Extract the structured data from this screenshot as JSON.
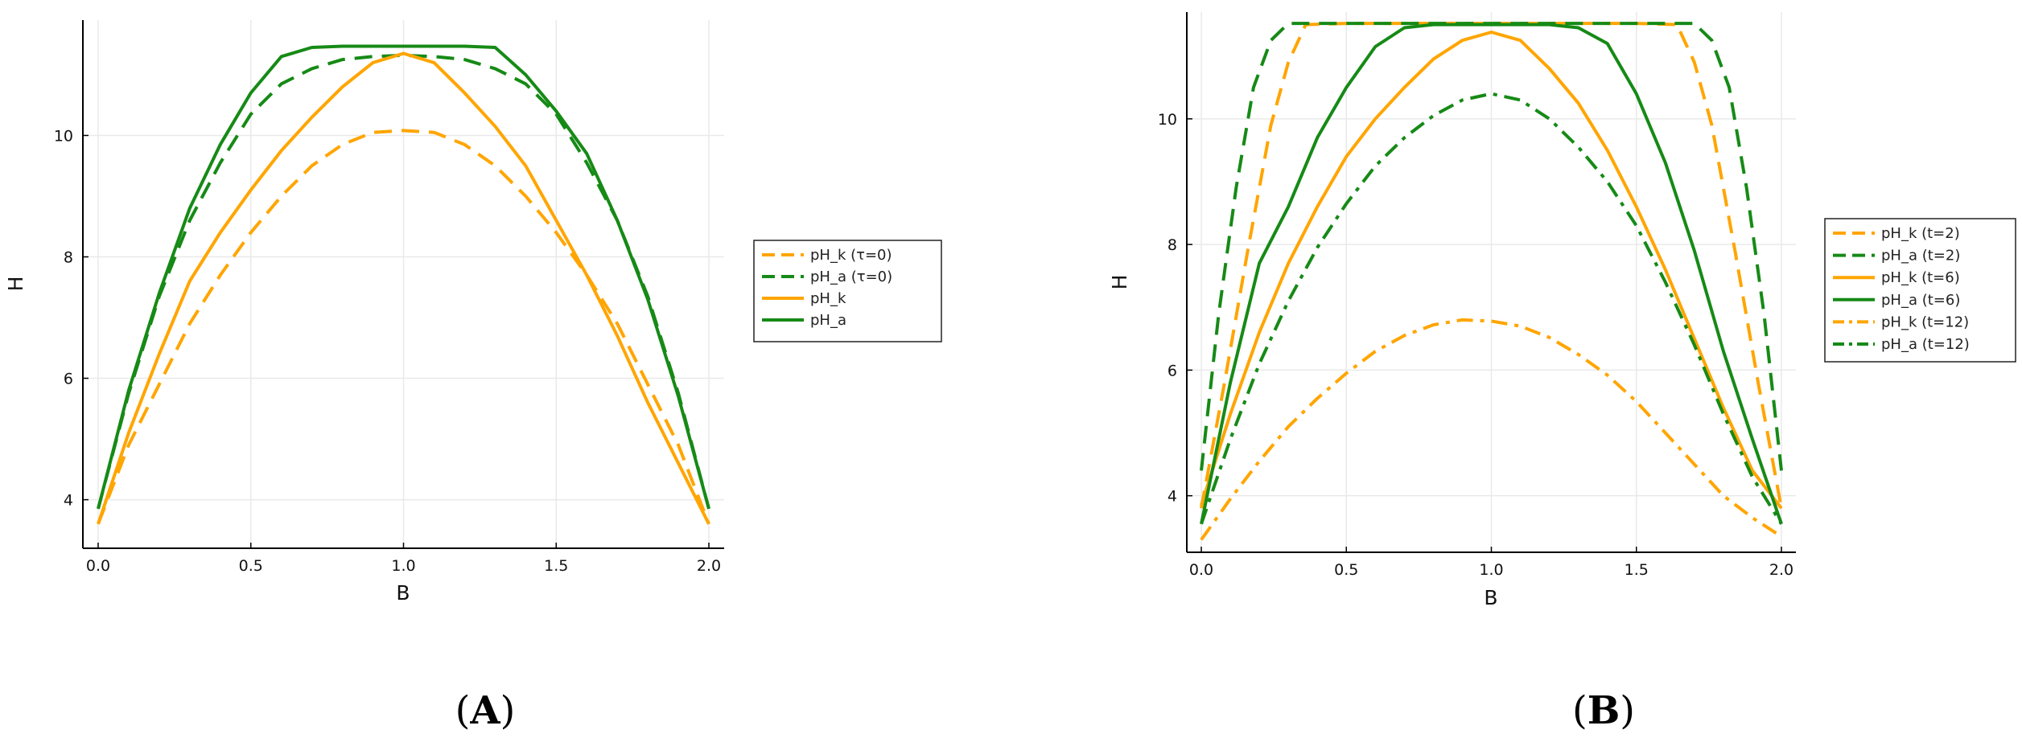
{
  "colors": {
    "orange": "#FFA500",
    "green": "#168A16"
  },
  "chart_data": [
    {
      "type": "line",
      "panel_label": {
        "open": "(",
        "letter": "A",
        "close": ")"
      },
      "xlabel": "B",
      "ylabel": "H",
      "xlim": [
        -0.05,
        2.05
      ],
      "ylim": [
        3.2,
        11.9
      ],
      "xticks": [
        0.0,
        0.5,
        1.0,
        1.5,
        2.0
      ],
      "xtick_labels": [
        "0.0",
        "0.5",
        "1.0",
        "1.5",
        "2.0"
      ],
      "yticks": [
        4,
        6,
        8,
        10
      ],
      "ytick_labels": [
        "4",
        "6",
        "8",
        "10"
      ],
      "grid": true,
      "legend_position": "outside-right",
      "series": [
        {
          "name": "pH_k (τ=0)",
          "color": "orange",
          "style": "dash",
          "x": [
            0,
            0.1,
            0.2,
            0.3,
            0.4,
            0.5,
            0.6,
            0.7,
            0.8,
            0.9,
            1.0,
            1.1,
            1.2,
            1.3,
            1.4,
            1.5,
            1.6,
            1.7,
            1.8,
            1.9,
            2.0
          ],
          "y": [
            3.6,
            4.9,
            5.9,
            6.9,
            7.7,
            8.4,
            9.0,
            9.5,
            9.85,
            10.05,
            10.08,
            10.05,
            9.85,
            9.5,
            9.0,
            8.4,
            7.7,
            6.9,
            5.9,
            4.9,
            3.6
          ]
        },
        {
          "name": "pH_a (τ=0)",
          "color": "green",
          "style": "dash",
          "x": [
            0,
            0.1,
            0.2,
            0.3,
            0.4,
            0.5,
            0.6,
            0.7,
            0.8,
            0.9,
            1.0,
            1.1,
            1.2,
            1.3,
            1.4,
            1.5,
            1.6,
            1.7,
            1.8,
            1.9,
            2.0
          ],
          "y": [
            3.85,
            5.75,
            7.35,
            8.6,
            9.55,
            10.35,
            10.85,
            11.1,
            11.25,
            11.3,
            11.32,
            11.3,
            11.25,
            11.1,
            10.85,
            10.35,
            9.55,
            8.6,
            7.35,
            5.75,
            3.85
          ]
        },
        {
          "name": "pH_k",
          "color": "orange",
          "style": "solid",
          "x": [
            0,
            0.1,
            0.2,
            0.3,
            0.4,
            0.5,
            0.6,
            0.7,
            0.8,
            0.9,
            1.0,
            1.1,
            1.2,
            1.3,
            1.4,
            1.5,
            1.6,
            1.7,
            1.8,
            1.9,
            2.0
          ],
          "y": [
            3.6,
            5.1,
            6.4,
            7.6,
            8.4,
            9.1,
            9.75,
            10.3,
            10.8,
            11.2,
            11.35,
            11.2,
            10.7,
            10.15,
            9.5,
            8.6,
            7.7,
            6.7,
            5.6,
            4.6,
            3.6
          ]
        },
        {
          "name": "pH_a",
          "color": "green",
          "style": "solid",
          "x": [
            0,
            0.1,
            0.2,
            0.3,
            0.4,
            0.5,
            0.6,
            0.7,
            0.8,
            0.9,
            1.0,
            1.1,
            1.2,
            1.3,
            1.4,
            1.5,
            1.6,
            1.7,
            1.8,
            1.9,
            2.0
          ],
          "y": [
            3.85,
            5.8,
            7.4,
            8.8,
            9.85,
            10.7,
            11.3,
            11.45,
            11.47,
            11.47,
            11.47,
            11.47,
            11.47,
            11.45,
            11.0,
            10.4,
            9.7,
            8.6,
            7.3,
            5.7,
            3.85
          ]
        }
      ]
    },
    {
      "type": "line",
      "panel_label": {
        "open": "(",
        "letter": "B",
        "close": ")"
      },
      "xlabel": "B",
      "ylabel": "H",
      "xlim": [
        -0.05,
        2.05
      ],
      "ylim": [
        3.1,
        11.7
      ],
      "xticks": [
        0.0,
        0.5,
        1.0,
        1.5,
        2.0
      ],
      "xtick_labels": [
        "0.0",
        "0.5",
        "1.0",
        "1.5",
        "2.0"
      ],
      "yticks": [
        4,
        6,
        8,
        10
      ],
      "ytick_labels": [
        "4",
        "6",
        "8",
        "10"
      ],
      "grid": true,
      "legend_position": "outside-right",
      "series": [
        {
          "name": "pH_k (t=2)",
          "color": "orange",
          "style": "dash",
          "x": [
            0,
            0.08,
            0.16,
            0.24,
            0.3,
            0.36,
            0.5,
            0.8,
            1.0,
            1.2,
            1.5,
            1.64,
            1.7,
            1.76,
            1.84,
            1.92,
            2.0
          ],
          "y": [
            3.8,
            5.8,
            7.9,
            9.9,
            10.9,
            11.5,
            11.52,
            11.52,
            11.52,
            11.52,
            11.52,
            11.5,
            10.9,
            9.9,
            7.9,
            5.8,
            3.8
          ]
        },
        {
          "name": "pH_a (t=2)",
          "color": "green",
          "style": "dash",
          "x": [
            0,
            0.06,
            0.12,
            0.18,
            0.24,
            0.3,
            0.5,
            0.8,
            1.0,
            1.2,
            1.5,
            1.7,
            1.76,
            1.82,
            1.88,
            1.94,
            2.0
          ],
          "y": [
            4.4,
            6.9,
            8.9,
            10.5,
            11.25,
            11.52,
            11.52,
            11.52,
            11.52,
            11.52,
            11.52,
            11.52,
            11.25,
            10.5,
            8.9,
            6.9,
            4.4
          ]
        },
        {
          "name": "pH_k (t=6)",
          "color": "orange",
          "style": "solid",
          "x": [
            0,
            0.1,
            0.2,
            0.3,
            0.4,
            0.5,
            0.6,
            0.7,
            0.8,
            0.9,
            1.0,
            1.1,
            1.2,
            1.3,
            1.4,
            1.5,
            1.6,
            1.7,
            1.8,
            1.9,
            2.0
          ],
          "y": [
            3.85,
            5.3,
            6.6,
            7.7,
            8.6,
            9.4,
            10.0,
            10.5,
            10.95,
            11.25,
            11.38,
            11.25,
            10.8,
            10.25,
            9.5,
            8.6,
            7.6,
            6.5,
            5.4,
            4.4,
            3.8
          ]
        },
        {
          "name": "pH_a (t=6)",
          "color": "green",
          "style": "solid",
          "x": [
            0,
            0.1,
            0.2,
            0.3,
            0.4,
            0.5,
            0.6,
            0.7,
            0.8,
            0.9,
            1.0,
            1.1,
            1.2,
            1.3,
            1.4,
            1.5,
            1.6,
            1.7,
            1.8,
            1.9,
            2.0
          ],
          "y": [
            3.55,
            5.8,
            7.7,
            8.6,
            9.7,
            10.5,
            11.15,
            11.45,
            11.5,
            11.5,
            11.5,
            11.5,
            11.5,
            11.45,
            11.2,
            10.4,
            9.3,
            7.9,
            6.3,
            4.9,
            3.55
          ]
        },
        {
          "name": "pH_k (t=12)",
          "color": "orange",
          "style": "dashdot",
          "x": [
            0,
            0.1,
            0.2,
            0.3,
            0.4,
            0.5,
            0.6,
            0.7,
            0.8,
            0.9,
            1.0,
            1.1,
            1.2,
            1.3,
            1.4,
            1.5,
            1.6,
            1.7,
            1.8,
            1.9,
            2.0
          ],
          "y": [
            3.3,
            3.95,
            4.55,
            5.1,
            5.55,
            5.95,
            6.3,
            6.55,
            6.72,
            6.8,
            6.78,
            6.7,
            6.52,
            6.25,
            5.92,
            5.5,
            5.0,
            4.5,
            4.0,
            3.65,
            3.35
          ]
        },
        {
          "name": "pH_a (t=12)",
          "color": "green",
          "style": "dashdot",
          "x": [
            0,
            0.1,
            0.2,
            0.3,
            0.4,
            0.5,
            0.6,
            0.7,
            0.8,
            0.9,
            1.0,
            1.1,
            1.2,
            1.3,
            1.4,
            1.5,
            1.6,
            1.7,
            1.8,
            1.9,
            2.0
          ],
          "y": [
            3.55,
            4.9,
            6.1,
            7.1,
            7.95,
            8.65,
            9.25,
            9.7,
            10.05,
            10.3,
            10.4,
            10.3,
            10.0,
            9.55,
            9.0,
            8.3,
            7.4,
            6.4,
            5.3,
            4.3,
            3.55
          ]
        }
      ]
    }
  ]
}
